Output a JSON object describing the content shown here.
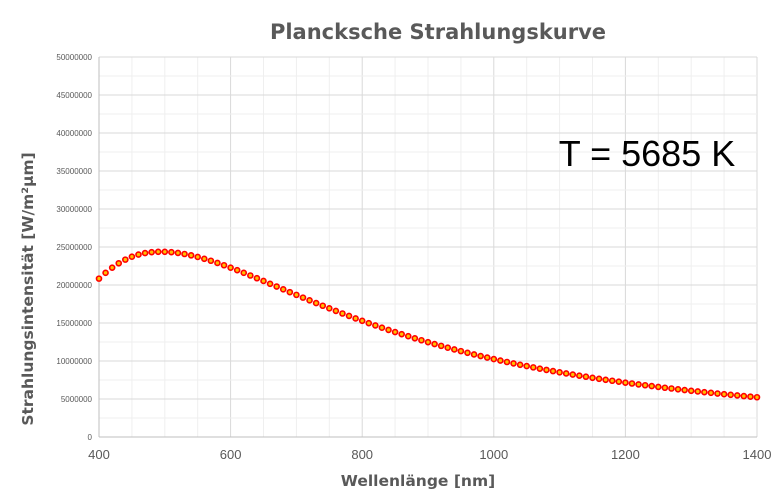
{
  "chart_data": {
    "type": "scatter",
    "title": "Plancksche Strahlungskurve",
    "xlabel": "Wellenlänge [nm]",
    "ylabel": "Strahlungsintensität [W/m²µm]",
    "annotation": "T = 5685 K",
    "temperature_K": 5685,
    "xlim": [
      400,
      1400
    ],
    "ylim": [
      0,
      50000000
    ],
    "xticks": [
      400,
      600,
      800,
      1000,
      1200,
      1400
    ],
    "xtick_labels": [
      "400",
      "600",
      "800",
      "1000",
      "1200",
      "1400"
    ],
    "yticks": [
      0,
      5000000,
      10000000,
      15000000,
      20000000,
      25000000,
      30000000,
      35000000,
      40000000,
      45000000,
      50000000
    ],
    "ytick_labels": [
      "0",
      "5000000",
      "10000000",
      "15000000",
      "20000000",
      "25000000",
      "30000000",
      "35000000",
      "40000000",
      "45000000",
      "50000000"
    ],
    "grid": true,
    "legend": "none",
    "series": [
      {
        "marker_color": "#FF0000",
        "marker_fill": "#FFC000",
        "x": [
          400,
          410,
          420,
          430,
          440,
          450,
          460,
          470,
          480,
          490,
          500,
          510,
          520,
          530,
          540,
          550,
          560,
          570,
          580,
          590,
          600,
          610,
          620,
          630,
          640,
          650,
          660,
          670,
          680,
          690,
          700,
          710,
          720,
          730,
          740,
          750,
          760,
          770,
          780,
          790,
          800,
          810,
          820,
          830,
          840,
          850,
          860,
          870,
          880,
          890,
          900,
          910,
          920,
          930,
          940,
          950,
          960,
          970,
          980,
          990,
          1000,
          1010,
          1020,
          1030,
          1040,
          1050,
          1060,
          1070,
          1080,
          1090,
          1100,
          1110,
          1120,
          1130,
          1140,
          1150,
          1160,
          1170,
          1180,
          1190,
          1200,
          1210,
          1220,
          1230,
          1240,
          1250,
          1260,
          1270,
          1280,
          1290,
          1300,
          1310,
          1320,
          1330,
          1340,
          1350,
          1360,
          1370,
          1380,
          1390,
          1400
        ],
        "y": [
          20840000,
          21600000,
          22280000,
          22860000,
          23340000,
          23720000,
          24000000,
          24200000,
          24320000,
          24370000,
          24370000,
          24320000,
          24220000,
          24080000,
          23900000,
          23690000,
          23450000,
          23190000,
          22900000,
          22600000,
          22280000,
          21950000,
          21600000,
          21250000,
          20890000,
          20530000,
          20160000,
          19800000,
          19430000,
          19060000,
          18700000,
          18340000,
          17980000,
          17620000,
          17270000,
          16930000,
          16590000,
          16250000,
          15930000,
          15600000,
          15290000,
          14980000,
          14680000,
          14380000,
          14090000,
          13810000,
          13530000,
          13260000,
          12990000,
          12730000,
          12480000,
          12230000,
          11990000,
          11750000,
          11520000,
          11300000,
          11080000,
          10860000,
          10650000,
          10450000,
          10250000,
          10060000,
          9870000,
          9680000,
          9500000,
          9330000,
          9160000,
          8990000,
          8830000,
          8670000,
          8510000,
          8360000,
          8210000,
          8070000,
          7930000,
          7790000,
          7660000,
          7530000,
          7400000,
          7280000,
          7150000,
          7040000,
          6920000,
          6810000,
          6700000,
          6590000,
          6480000,
          6380000,
          6280000,
          6180000,
          6080000,
          5990000,
          5900000,
          5810000,
          5720000,
          5630000,
          5550000,
          5470000,
          5380000,
          5310000,
          5230000
        ]
      }
    ]
  }
}
